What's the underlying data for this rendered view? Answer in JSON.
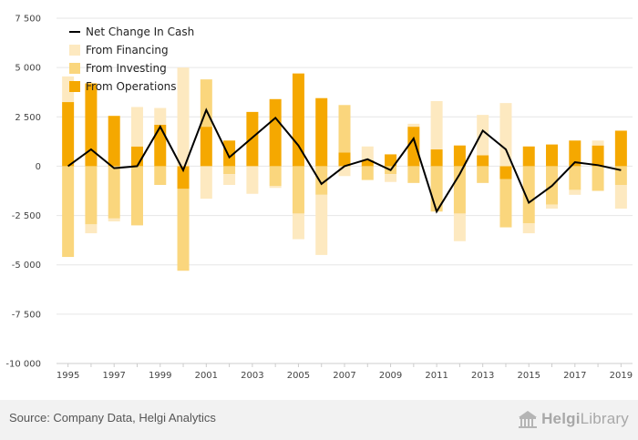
{
  "chart_data": {
    "type": "bar",
    "title": "",
    "xlabel": "",
    "ylabel": "",
    "stacked": true,
    "categories": [
      "1995",
      "1996",
      "1997",
      "1998",
      "1999",
      "2000",
      "2001",
      "2002",
      "2003",
      "2004",
      "2005",
      "2006",
      "2007",
      "2008",
      "2009",
      "2010",
      "2011",
      "2012",
      "2013",
      "2014",
      "2015",
      "2016",
      "2017",
      "2018",
      "2019"
    ],
    "x_tick_labels": [
      "1995",
      "1997",
      "1999",
      "2001",
      "2003",
      "2005",
      "2007",
      "2009",
      "2011",
      "2013",
      "2015",
      "2017",
      "2019"
    ],
    "y_tick_labels": [
      "7 500",
      "5 000",
      "2 500",
      "0",
      "-2 500",
      "-5 000",
      "-7 500",
      "-10 000"
    ],
    "y_ticks": [
      7500,
      5000,
      2500,
      0,
      -2500,
      -5000,
      -7500,
      -10000
    ],
    "ylim": [
      -10000,
      7500
    ],
    "grid": true,
    "legend_position": "top-left",
    "series": [
      {
        "name": "From Operations",
        "kind": "bar",
        "color": "#f5a800",
        "values": [
          3250,
          4200,
          2550,
          1000,
          2100,
          -1150,
          2000,
          1300,
          2750,
          3400,
          4700,
          3450,
          700,
          300,
          600,
          2000,
          850,
          1050,
          550,
          -650,
          1000,
          1100,
          1300,
          1050,
          1800
        ]
      },
      {
        "name": "From Investing",
        "kind": "bar",
        "color": "#fad67d",
        "values": [
          -4600,
          -2950,
          -2650,
          -3000,
          -950,
          -4150,
          2400,
          -400,
          0,
          -1000,
          -2400,
          -1450,
          2400,
          -700,
          -400,
          -850,
          -2300,
          -2400,
          -850,
          -2450,
          -2900,
          -1950,
          -1200,
          -1250,
          -950
        ]
      },
      {
        "name": "From Financing",
        "kind": "bar",
        "color": "#fde9c0",
        "values": [
          1300,
          -450,
          -150,
          2000,
          850,
          5000,
          -1650,
          -550,
          -1400,
          -100,
          -1300,
          -3050,
          -500,
          700,
          -400,
          150,
          2450,
          -1400,
          2050,
          3200,
          -500,
          -200,
          -250,
          250,
          -1200
        ]
      },
      {
        "name": "Net Change In Cash",
        "kind": "line",
        "color": "#000000",
        "values": [
          0,
          850,
          -100,
          0,
          2000,
          -200,
          2850,
          450,
          1450,
          2450,
          1050,
          -900,
          0,
          350,
          -200,
          1400,
          -2300,
          -400,
          1800,
          850,
          -1850,
          -1000,
          200,
          50,
          -200
        ]
      }
    ]
  },
  "footer": {
    "source": "Source: Company Data, Helgi Analytics",
    "logo_part1": "Helgi",
    "logo_part2": "Library"
  }
}
